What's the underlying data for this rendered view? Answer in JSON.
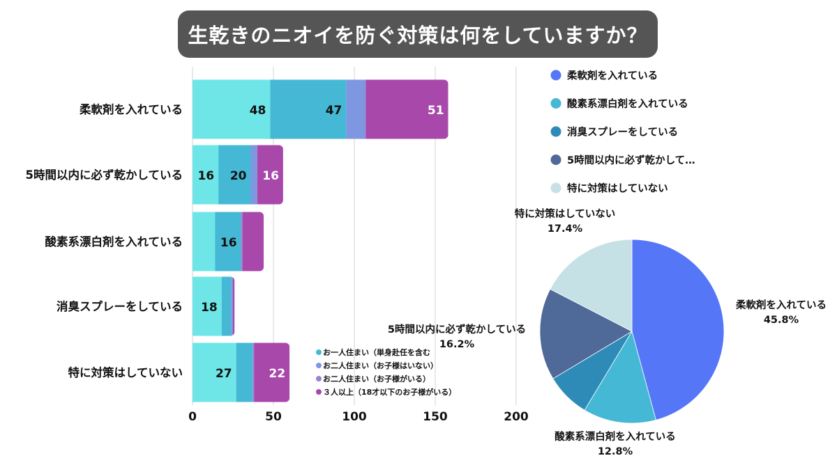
{
  "title": "生乾きのニオイを防ぐ対策は何をしていますか？",
  "chart_data": [
    {
      "type": "bar",
      "orientation": "horizontal",
      "stacked": true,
      "categories": [
        "柔軟剤を入れている",
        "5時間以内に必ず乾かしている",
        "酸素系漂白剤を入れている",
        "消臭スプレーをしている",
        "特に対策はしていない"
      ],
      "series": [
        {
          "values": [
            48,
            16,
            14,
            18,
            27
          ],
          "color": "#6ee6e8"
        },
        {
          "name": "お一人住まい（単身赴任を含む",
          "values": [
            47,
            20,
            16,
            6,
            10
          ],
          "color": "#45b8d5"
        },
        {
          "name": "お二人住まい（お子様はいない）",
          "values": [
            12,
            4,
            0,
            1,
            1
          ],
          "color": "#7f96e0"
        },
        {
          "name": "お二人住まい（お子様がいる）",
          "values": [
            0,
            0,
            1,
            0,
            0
          ],
          "color": "#9b7fd4"
        },
        {
          "name": "３人以上（18才以下のお子様がいる）",
          "values": [
            51,
            16,
            13,
            1,
            22
          ],
          "color": "#a948ab"
        }
      ],
      "xlim": [
        0,
        200
      ],
      "xticks": [
        "0",
        "50",
        "100",
        "150",
        "200"
      ],
      "grid": true,
      "legend_position": "bottom-right"
    },
    {
      "type": "pie",
      "slices": [
        {
          "label": "柔軟剤を入れている",
          "value": 45.8,
          "display": "45.8%",
          "legend": "柔軟剤を入れている",
          "color": "#5576f7"
        },
        {
          "label": "酸素系漂白剤を入れている",
          "value": 12.8,
          "display": "12.8%",
          "legend": "酸素系漂白剤を入れている",
          "color": "#45b8d5"
        },
        {
          "label": "",
          "value": 7.8,
          "display": "",
          "legend": "消臭スプレーをしている",
          "color": "#2e8bb8"
        },
        {
          "label": "5時間以内に必ず乾かしている",
          "value": 16.2,
          "display": "16.2%",
          "legend": "5時間以内に必ず乾かして…",
          "color": "#4f6a98"
        },
        {
          "label": "特に対策はしていない",
          "value": 17.4,
          "display": "17.4%",
          "legend": "特に対策はしていない",
          "color": "#c5e1e6"
        }
      ],
      "legend_position": "top"
    }
  ]
}
